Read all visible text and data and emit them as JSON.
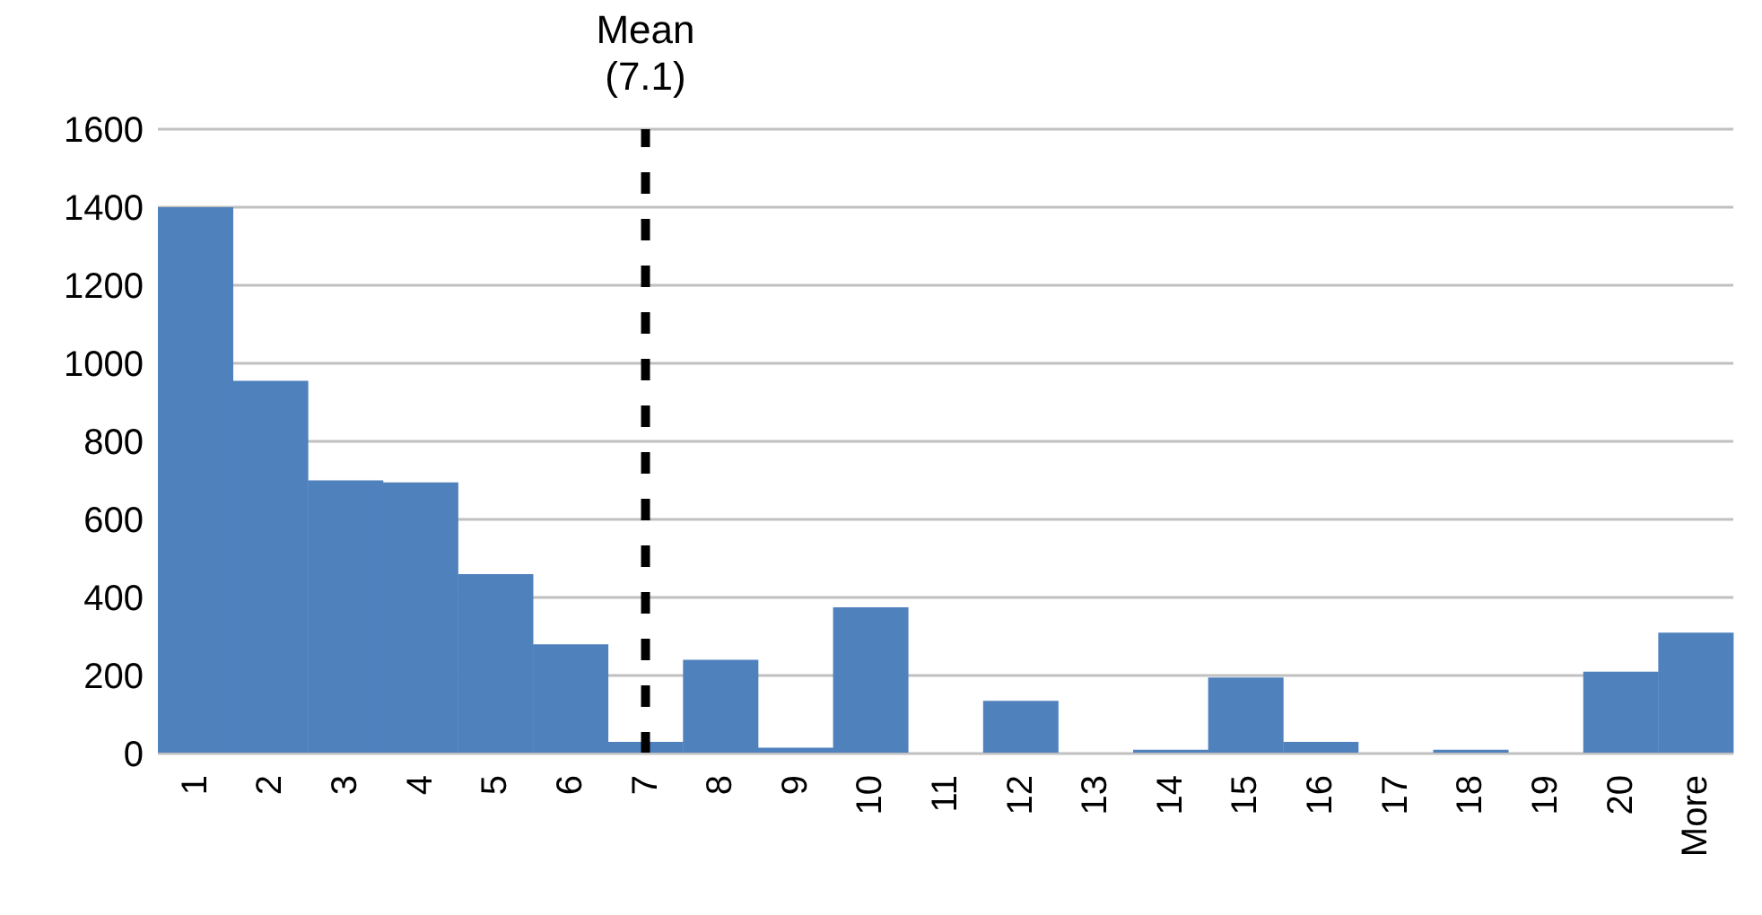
{
  "chart_data": {
    "type": "bar",
    "categories": [
      "1",
      "2",
      "3",
      "4",
      "5",
      "6",
      "7",
      "8",
      "9",
      "10",
      "11",
      "12",
      "13",
      "14",
      "15",
      "16",
      "17",
      "18",
      "19",
      "20",
      "More"
    ],
    "values": [
      1400,
      955,
      700,
      695,
      460,
      280,
      30,
      240,
      15,
      375,
      0,
      135,
      0,
      10,
      195,
      30,
      0,
      10,
      0,
      210,
      310
    ],
    "color": "#4f81bd",
    "ylim": [
      0,
      1600
    ],
    "yticks": [
      0,
      200,
      400,
      600,
      800,
      1000,
      1200,
      1400,
      1600
    ],
    "grid": "y",
    "ref_lines": [
      {
        "axis": "x",
        "value": "7",
        "label": "Mean (7.1)",
        "color": "#000000",
        "line_style": "dashed"
      }
    ]
  }
}
